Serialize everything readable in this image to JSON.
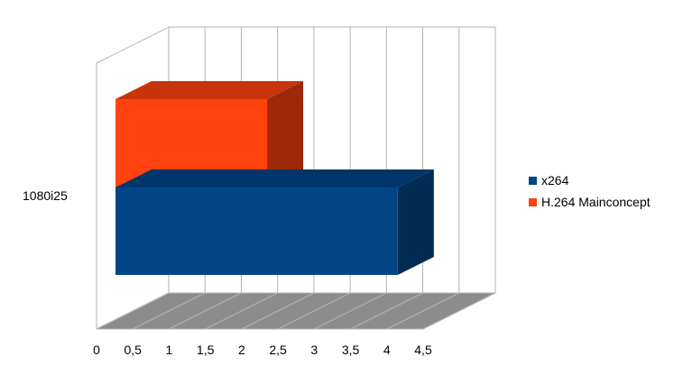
{
  "chart_data": {
    "type": "bar",
    "orientation": "horizontal",
    "style": "3d",
    "categories": [
      "1080i25"
    ],
    "series": [
      {
        "name": "x264",
        "values": [
          4.15
        ],
        "color": "#004586"
      },
      {
        "name": "H.264 Mainconcept",
        "values": [
          2.35
        ],
        "color": "#ff420e"
      }
    ],
    "xlim": [
      0,
      4.5
    ],
    "x_ticks": [
      "0",
      "0,5",
      "1",
      "1,5",
      "2",
      "2,5",
      "3",
      "3,5",
      "4",
      "4,5"
    ],
    "grid": true,
    "legend": "right"
  }
}
